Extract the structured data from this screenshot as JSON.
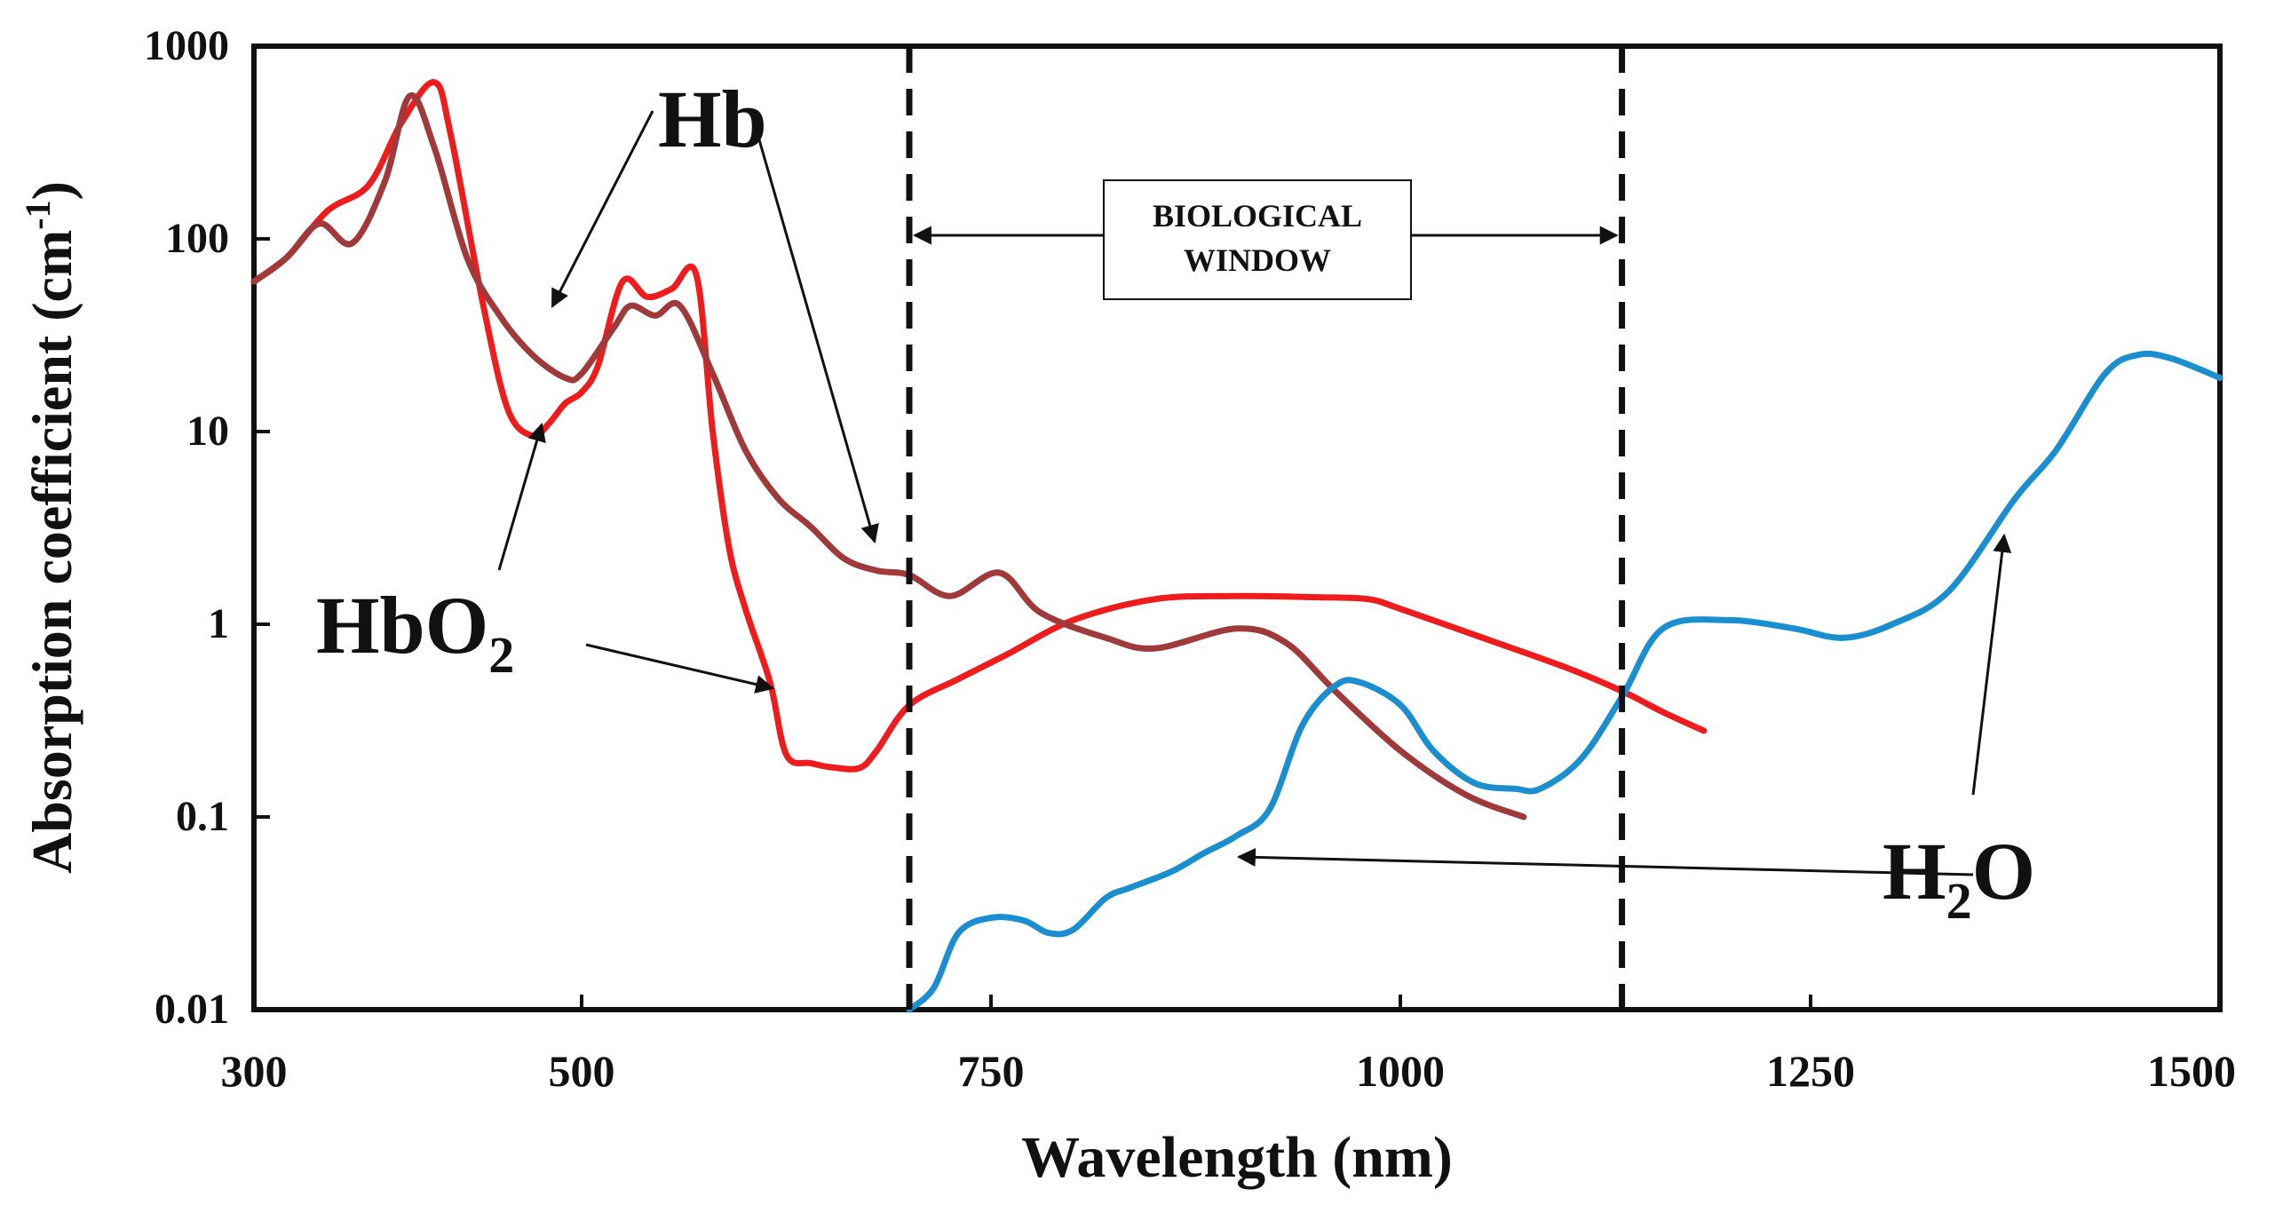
{
  "chart_data": {
    "type": "line",
    "xlabel": "Wavelength (nm)",
    "ylabel": "Absorption coefficient (cm",
    "ylabel_sup": "-1",
    "ylabel_close": ")",
    "yscale": "log",
    "xlim": [
      300,
      1500
    ],
    "ylim": [
      0.01,
      1000
    ],
    "x_ticks": [
      300,
      500,
      750,
      1000,
      1250,
      1500
    ],
    "x_tick_labels": [
      "300",
      "500",
      "750",
      "1000",
      "1250",
      "1500"
    ],
    "y_ticks": [
      0.01,
      0.1,
      1,
      10,
      100,
      1000
    ],
    "y_tick_labels": [
      "0.01",
      "0.1",
      "1",
      "10",
      "100",
      "1000"
    ],
    "window": {
      "start": 700,
      "end": 1135,
      "label_line1": "BIOLOGICAL",
      "label_line2": "WINDOW"
    },
    "series": [
      {
        "name": "HbO2",
        "color": "#ee1c1c",
        "x": [
          300,
          320,
          345,
          370,
          390,
          410,
          420,
          440,
          455,
          470,
          480,
          490,
          500,
          510,
          525,
          540,
          555,
          570,
          580,
          590,
          600,
          615,
          625,
          640,
          655,
          670,
          680,
          700,
          730,
          760,
          800,
          850,
          900,
          950,
          980,
          1000,
          1050,
          1100,
          1135,
          1160,
          1185
        ],
        "values": [
          60,
          80,
          140,
          190,
          400,
          650,
          350,
          45,
          13,
          9.5,
          11,
          14,
          16,
          22,
          60,
          50,
          55,
          65,
          10,
          2.5,
          1.2,
          0.5,
          0.21,
          0.19,
          0.18,
          0.18,
          0.22,
          0.38,
          0.52,
          0.7,
          1.05,
          1.35,
          1.4,
          1.38,
          1.35,
          1.2,
          0.85,
          0.6,
          0.45,
          0.35,
          0.28
        ]
      },
      {
        "name": "Hb",
        "color": "#a0393a",
        "x": [
          300,
          320,
          340,
          360,
          380,
          395,
          410,
          430,
          450,
          470,
          490,
          500,
          520,
          530,
          545,
          560,
          580,
          600,
          620,
          640,
          660,
          680,
          700,
          725,
          755,
          780,
          820,
          850,
          900,
          930,
          960,
          1000,
          1040,
          1075
        ],
        "values": [
          60,
          80,
          120,
          95,
          200,
          550,
          300,
          80,
          40,
          25,
          19,
          20,
          35,
          45,
          40,
          45,
          20,
          8,
          4.5,
          3.2,
          2.2,
          1.9,
          1.8,
          1.4,
          1.85,
          1.15,
          0.85,
          0.75,
          0.95,
          0.8,
          0.45,
          0.22,
          0.13,
          0.1
        ]
      },
      {
        "name": "H2O",
        "color": "#1b8ed0",
        "x": [
          700,
          715,
          730,
          750,
          770,
          785,
          800,
          820,
          835,
          860,
          880,
          900,
          920,
          940,
          960,
          975,
          1000,
          1020,
          1045,
          1070,
          1085,
          1110,
          1135,
          1160,
          1200,
          1240,
          1270,
          1300,
          1335,
          1375,
          1400,
          1430,
          1450,
          1470,
          1500
        ],
        "values": [
          0.01,
          0.013,
          0.025,
          0.03,
          0.029,
          0.025,
          0.026,
          0.038,
          0.043,
          0.052,
          0.065,
          0.08,
          0.11,
          0.3,
          0.48,
          0.5,
          0.38,
          0.22,
          0.15,
          0.14,
          0.14,
          0.2,
          0.42,
          0.95,
          1.05,
          0.95,
          0.85,
          1.0,
          1.5,
          4.5,
          8,
          20,
          25,
          24,
          19
        ]
      }
    ],
    "annotations": [
      {
        "text": "Hb",
        "series": "Hb"
      },
      {
        "text": "HbO",
        "sub": "2",
        "series": "HbO2"
      },
      {
        "text": "H",
        "sub": "2",
        "text_after": "O",
        "series": "H2O"
      }
    ]
  }
}
